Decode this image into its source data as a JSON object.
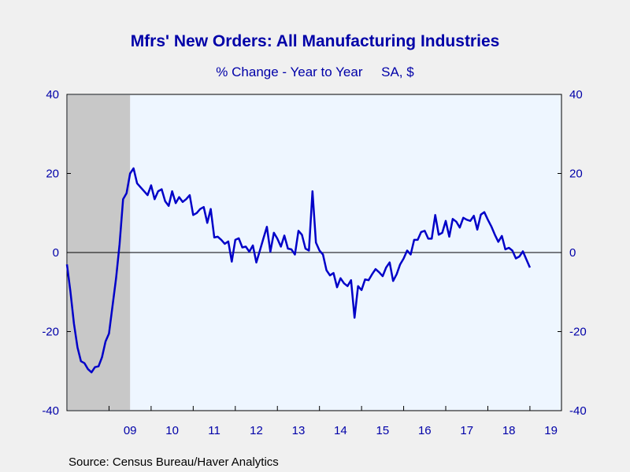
{
  "chart_data": {
    "type": "line",
    "title": "Mfrs' New Orders: All Manufacturing Industries",
    "subtitle": "% Change - Year to Year     SA, $",
    "source": "Source:  Census Bureau/Haver Analytics",
    "ylim": [
      -40,
      40
    ],
    "yticks": [
      "40",
      "20",
      "0",
      "-20",
      "-40"
    ],
    "ytick_values": [
      40,
      20,
      0,
      -20,
      -40
    ],
    "xlim": [
      2008.0,
      2019.75
    ],
    "xtick_labels": [
      "09",
      "10",
      "11",
      "12",
      "13",
      "14",
      "15",
      "16",
      "17",
      "18",
      "19"
    ],
    "xtick_centers": [
      2009.5,
      2010.5,
      2011.5,
      2012.5,
      2013.5,
      2014.5,
      2015.5,
      2016.5,
      2017.5,
      2018.5,
      2019.5
    ],
    "recession": [
      2008.0,
      2009.5
    ],
    "grid": false,
    "colors": {
      "line": "#0000c8",
      "text": "#0000a8",
      "plot_bg": "#eef6ff",
      "recession": "#c8c8c8",
      "page_bg": "#f0f0f0"
    },
    "series": [
      {
        "values": [
          -3,
          -10,
          -18,
          -24,
          -27.5,
          -28,
          -29.5,
          -30.3,
          -29,
          -28.8,
          -26.5,
          -22.5,
          -20.5,
          -13.5,
          -6.5,
          2,
          13.5,
          15,
          20,
          21.3,
          17.5,
          16.5,
          15.5,
          14.5,
          17,
          13.5,
          15.5,
          16,
          13,
          11.8,
          15.5,
          12.5,
          14,
          12.8,
          13.5,
          14.5,
          9.5,
          10,
          11,
          11.5,
          7.5,
          11,
          3.8,
          4,
          3.2,
          2.2,
          2.8,
          -2.3,
          3.2,
          3.6,
          1.3,
          1.5,
          0.2,
          1.8,
          -2.5,
          0.5,
          3.5,
          6.5,
          0.2,
          5,
          3.5,
          1.5,
          4.3,
          1,
          0.8,
          -0.5,
          5.5,
          4.5,
          1,
          0.5,
          15.5,
          2.5,
          0.5,
          -0.5,
          -4.5,
          -5.8,
          -5.2,
          -8.8,
          -6.5,
          -7.8,
          -8.5,
          -7,
          -16.5,
          -8.5,
          -9.5,
          -6.8,
          -7,
          -5.5,
          -4.2,
          -5,
          -6,
          -3.8,
          -2.5,
          -7.2,
          -5.5,
          -3,
          -1.5,
          0.5,
          -0.5,
          3.2,
          3.2,
          5.2,
          5.5,
          3.5,
          3.5,
          9.5,
          4.5,
          5,
          8,
          4,
          8.5,
          7.8,
          6.3,
          8.8,
          8.3,
          8,
          9.3,
          5.8,
          9.6,
          10.2,
          8.3,
          6.6,
          4.5,
          2.7,
          4.2,
          0.8,
          1.2,
          0.5,
          -1.5,
          -1,
          0.3,
          -1.8,
          -3.8
        ]
      }
    ]
  }
}
